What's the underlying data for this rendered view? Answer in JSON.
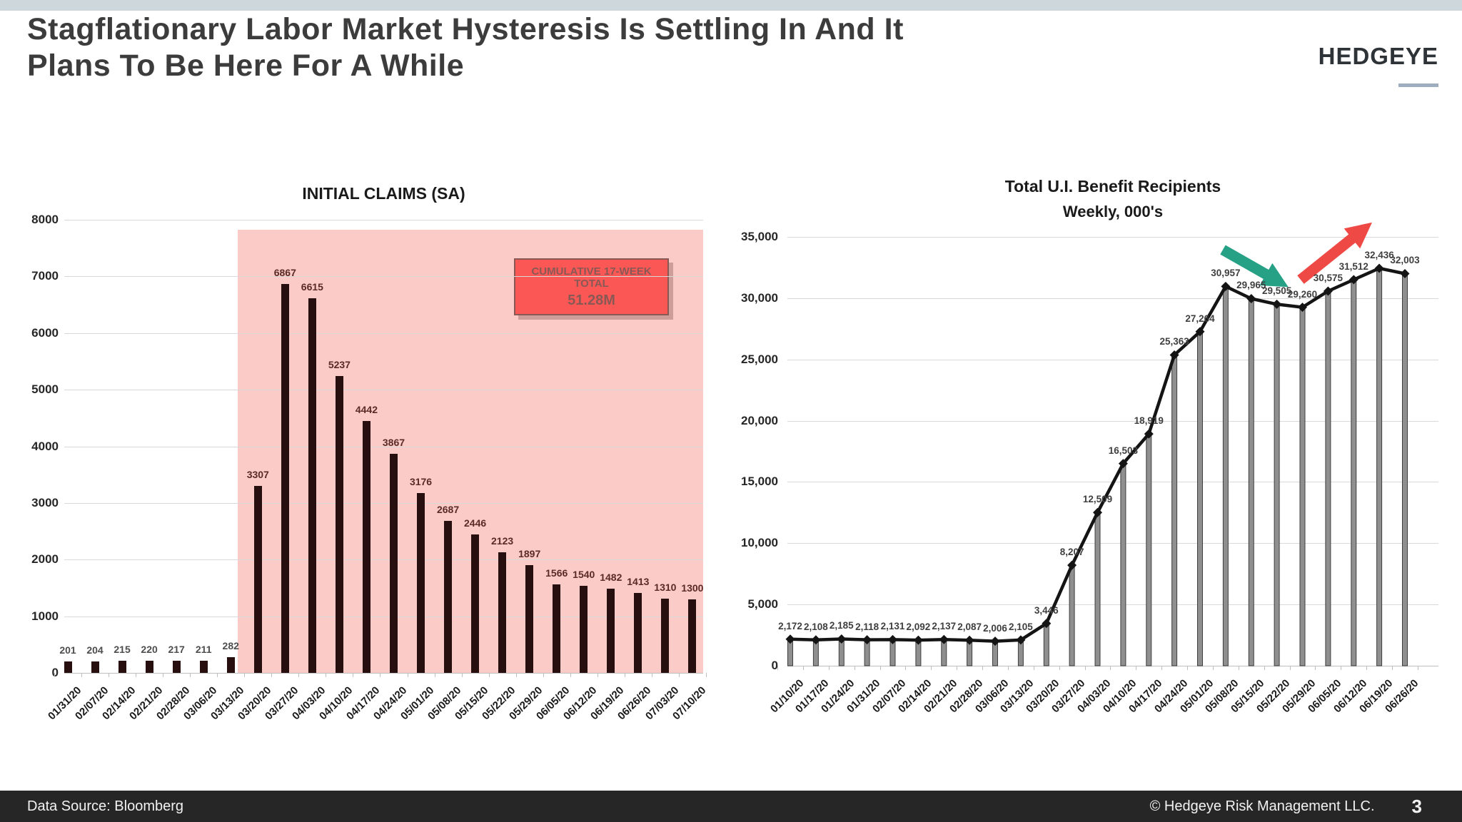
{
  "slide": {
    "title_line1": "Stagflationary Labor Market Hysteresis Is Settling In And It",
    "title_line2": "Plans To Be Here For A While",
    "logo_text": "HEDGEYE",
    "footer": {
      "data_source": "Data Source: Bloomberg",
      "copyright": "© Hedgeye Risk Management LLC.",
      "page_number": "3"
    }
  },
  "colors": {
    "top_band": "#cdd7dc",
    "title_text": "#3c3c3c",
    "logo_text": "#2e3338",
    "logo_underline": "#9dadbe",
    "footer_bg": "#262626",
    "footer_text": "#f2f2f2",
    "gridline": "#d9d9d9",
    "baseline": "#bfbfbf",
    "axis_text": "#262626",
    "highlight_region": "#f7a09a",
    "bar_fill": "#260f0e",
    "bar_label_early": "#4d4d4d",
    "bar_label_highlight": "#5a2a24",
    "callout_bg": "#fe0100",
    "callout_border": "#000000",
    "line_color": "#141414",
    "stem_fill": "#8f8f8f",
    "stem_border": "#3f3f3f",
    "point_label": "#3f3f3f",
    "green_arrow": "#26a185",
    "red_arrow": "#ee4944"
  },
  "chart_data": [
    {
      "type": "bar",
      "title": "INITIAL CLAIMS (SA)",
      "categories": [
        "01/31/20",
        "02/07/20",
        "02/14/20",
        "02/21/20",
        "02/28/20",
        "03/06/20",
        "03/13/20",
        "03/20/20",
        "03/27/20",
        "04/03/20",
        "04/10/20",
        "04/17/20",
        "04/24/20",
        "05/01/20",
        "05/08/20",
        "05/15/20",
        "05/22/20",
        "05/29/20",
        "06/05/20",
        "06/12/20",
        "06/19/20",
        "06/26/20",
        "07/03/20",
        "07/10/20"
      ],
      "values": [
        201,
        204,
        215,
        220,
        217,
        211,
        282,
        3307,
        6867,
        6615,
        5237,
        4442,
        3867,
        3176,
        2687,
        2446,
        2123,
        1897,
        1566,
        1540,
        1482,
        1413,
        1310,
        1300
      ],
      "ylim": [
        0,
        8000
      ],
      "ytick_step": 1000,
      "grid": true,
      "legend": "none",
      "highlight_start_index": 7,
      "annotation": {
        "line1": "CUMULATIVE 17-WEEK TOTAL",
        "line2": "51.28M"
      }
    },
    {
      "type": "line",
      "title": "Total U.I. Benefit Recipients",
      "subtitle": "Weekly, 000's",
      "categories": [
        "01/10/20",
        "01/17/20",
        "01/24/20",
        "01/31/20",
        "02/07/20",
        "02/14/20",
        "02/21/20",
        "02/28/20",
        "03/06/20",
        "03/13/20",
        "03/20/20",
        "03/27/20",
        "04/03/20",
        "04/10/20",
        "04/17/20",
        "04/24/20",
        "05/01/20",
        "05/08/20",
        "05/15/20",
        "05/22/20",
        "05/29/20",
        "06/05/20",
        "06/12/20",
        "06/19/20",
        "06/26/20"
      ],
      "values": [
        2172,
        2108,
        2185,
        2118,
        2131,
        2092,
        2137,
        2087,
        2006,
        2105,
        3446,
        8207,
        12509,
        16503,
        18919,
        25363,
        27264,
        30957,
        29965,
        29505,
        29260,
        30575,
        31512,
        32436,
        32003
      ],
      "ylim": [
        0,
        35000
      ],
      "ytick_step": 5000,
      "grid": true,
      "legend": "none",
      "marker": "diamond",
      "annotations": [
        "green-down-arrow",
        "red-up-arrow"
      ]
    }
  ]
}
